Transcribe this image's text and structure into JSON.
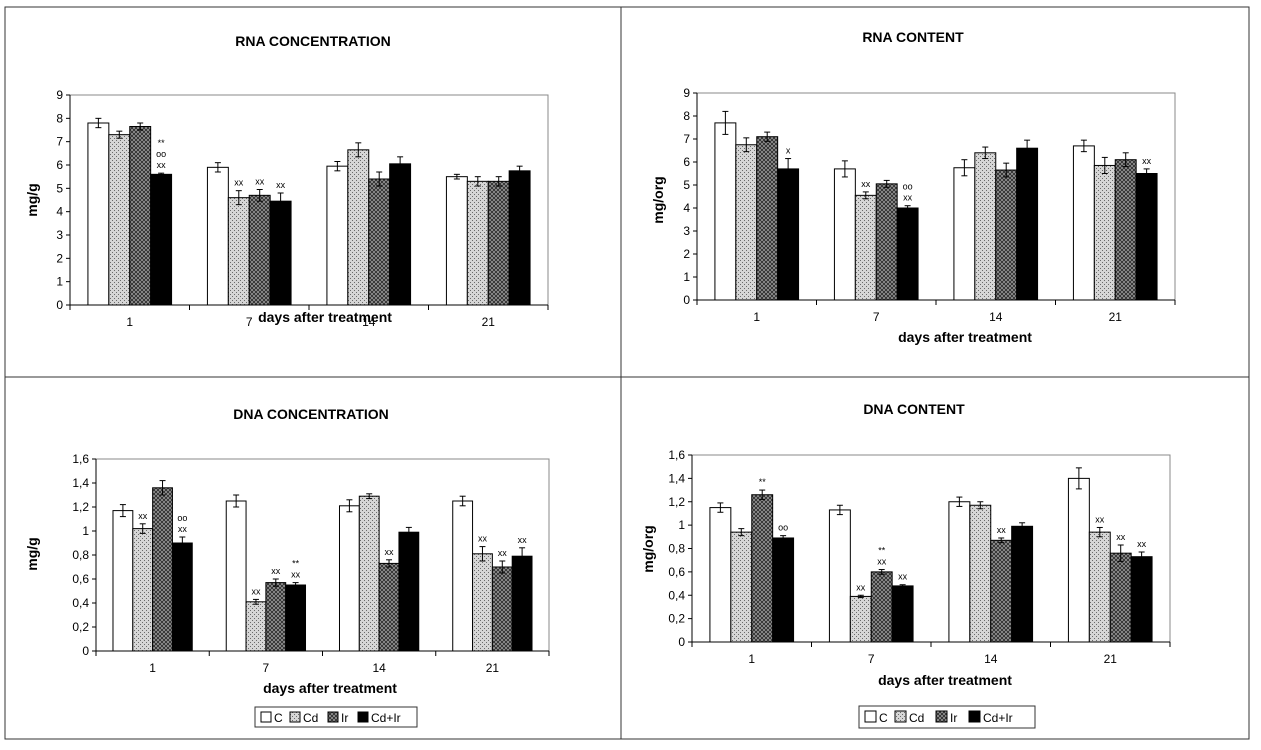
{
  "colors": {
    "C": "#ffffff",
    "Cd": "#bdbdbd",
    "Ir": "#8a8a8a",
    "Cd+Ir": "#000000"
  },
  "legend": [
    {
      "key": "C",
      "label": "C"
    },
    {
      "key": "Cd",
      "label": "Cd"
    },
    {
      "key": "Ir",
      "label": "Ir"
    },
    {
      "key": "Cd+Ir",
      "label": "Cd+Ir"
    }
  ],
  "chart_data": [
    {
      "type": "bar",
      "title": "RNA CONCENTRATION",
      "xlabel": "days after treatment",
      "ylabel": "mg/g",
      "ylim": [
        0,
        9
      ],
      "yticks": [
        "0",
        "1",
        "2",
        "3",
        "4",
        "5",
        "6",
        "7",
        "8",
        "9"
      ],
      "categories": [
        "1",
        "7",
        "14",
        "21"
      ],
      "series": [
        {
          "name": "C",
          "values": [
            7.8,
            5.9,
            5.95,
            5.5
          ],
          "errors": [
            0.2,
            0.2,
            0.2,
            0.1
          ]
        },
        {
          "name": "Cd",
          "values": [
            7.3,
            4.6,
            6.65,
            5.3
          ],
          "errors": [
            0.15,
            0.3,
            0.3,
            0.2
          ]
        },
        {
          "name": "Ir",
          "values": [
            7.65,
            4.7,
            5.4,
            5.3
          ],
          "errors": [
            0.15,
            0.25,
            0.3,
            0.2
          ]
        },
        {
          "name": "Cd+Ir",
          "values": [
            5.6,
            4.45,
            6.05,
            5.75
          ],
          "errors": [
            0.05,
            0.35,
            0.3,
            0.2
          ]
        }
      ],
      "annotations": [
        {
          "category": "1",
          "series": "Cd+Ir",
          "lines": [
            "**",
            "oo",
            "xx"
          ]
        },
        {
          "category": "7",
          "series": "Cd",
          "lines": [
            "xx"
          ]
        },
        {
          "category": "7",
          "series": "Ir",
          "lines": [
            "xx"
          ]
        },
        {
          "category": "7",
          "series": "Cd+Ir",
          "lines": [
            "xx"
          ]
        }
      ]
    },
    {
      "type": "bar",
      "title": "RNA CONTENT",
      "xlabel": "days after treatment",
      "ylabel": "mg/org",
      "ylim": [
        0,
        9
      ],
      "yticks": [
        "0",
        "1",
        "2",
        "3",
        "4",
        "5",
        "6",
        "7",
        "8",
        "9"
      ],
      "categories": [
        "1",
        "7",
        "14",
        "21"
      ],
      "series": [
        {
          "name": "C",
          "values": [
            7.7,
            5.7,
            5.75,
            6.7
          ],
          "errors": [
            0.5,
            0.35,
            0.35,
            0.25
          ]
        },
        {
          "name": "Cd",
          "values": [
            6.75,
            4.55,
            6.4,
            5.85
          ],
          "errors": [
            0.3,
            0.15,
            0.25,
            0.35
          ]
        },
        {
          "name": "Ir",
          "values": [
            7.1,
            5.05,
            5.65,
            6.1
          ],
          "errors": [
            0.2,
            0.15,
            0.3,
            0.3
          ]
        },
        {
          "name": "Cd+Ir",
          "values": [
            5.7,
            4.0,
            6.6,
            5.5
          ],
          "errors": [
            0.45,
            0.1,
            0.35,
            0.2
          ]
        }
      ],
      "annotations": [
        {
          "category": "1",
          "series": "Cd+Ir",
          "lines": [
            "x"
          ]
        },
        {
          "category": "7",
          "series": "Cd",
          "lines": [
            "xx"
          ]
        },
        {
          "category": "7",
          "series": "Cd+Ir",
          "lines": [
            "oo",
            "xx"
          ]
        },
        {
          "category": "21",
          "series": "Cd+Ir",
          "lines": [
            "xx"
          ]
        }
      ]
    },
    {
      "type": "bar",
      "title": "DNA CONCENTRATION",
      "xlabel": "days after treatment",
      "ylabel": "mg/g",
      "ylim": [
        0,
        1.6
      ],
      "yticks": [
        "0",
        "0,2",
        "0,4",
        "0,6",
        "0,8",
        "1",
        "1,2",
        "1,4",
        "1,6"
      ],
      "categories": [
        "1",
        "7",
        "14",
        "21"
      ],
      "series": [
        {
          "name": "C",
          "values": [
            1.17,
            1.25,
            1.21,
            1.25
          ],
          "errors": [
            0.05,
            0.05,
            0.05,
            0.04
          ]
        },
        {
          "name": "Cd",
          "values": [
            1.02,
            0.41,
            1.29,
            0.81
          ],
          "errors": [
            0.04,
            0.02,
            0.02,
            0.06
          ]
        },
        {
          "name": "Ir",
          "values": [
            1.36,
            0.57,
            0.73,
            0.7
          ],
          "errors": [
            0.06,
            0.03,
            0.03,
            0.05
          ]
        },
        {
          "name": "Cd+Ir",
          "values": [
            0.9,
            0.55,
            0.99,
            0.79
          ],
          "errors": [
            0.05,
            0.02,
            0.04,
            0.07
          ]
        }
      ],
      "annotations": [
        {
          "category": "1",
          "series": "Cd",
          "lines": [
            "xx"
          ]
        },
        {
          "category": "1",
          "series": "Cd+Ir",
          "lines": [
            "oo",
            "xx"
          ]
        },
        {
          "category": "7",
          "series": "Cd",
          "lines": [
            "xx"
          ]
        },
        {
          "category": "7",
          "series": "Ir",
          "lines": [
            "xx"
          ]
        },
        {
          "category": "7",
          "series": "Cd+Ir",
          "lines": [
            "**",
            "xx"
          ]
        },
        {
          "category": "14",
          "series": "Ir",
          "lines": [
            "xx"
          ]
        },
        {
          "category": "21",
          "series": "Cd",
          "lines": [
            "xx"
          ]
        },
        {
          "category": "21",
          "series": "Ir",
          "lines": [
            "xx"
          ]
        },
        {
          "category": "21",
          "series": "Cd+Ir",
          "lines": [
            "xx"
          ]
        }
      ]
    },
    {
      "type": "bar",
      "title": "DNA CONTENT",
      "xlabel": "days after treatment",
      "ylabel": "mg/org",
      "ylim": [
        0,
        1.6
      ],
      "yticks": [
        "0",
        "0,2",
        "0,4",
        "0,6",
        "0,8",
        "1",
        "1,2",
        "1,4",
        "1,6"
      ],
      "categories": [
        "1",
        "7",
        "14",
        "21"
      ],
      "series": [
        {
          "name": "C",
          "values": [
            1.15,
            1.13,
            1.2,
            1.4
          ],
          "errors": [
            0.04,
            0.04,
            0.04,
            0.09
          ]
        },
        {
          "name": "Cd",
          "values": [
            0.94,
            0.39,
            1.17,
            0.94
          ],
          "errors": [
            0.03,
            0.01,
            0.03,
            0.04
          ]
        },
        {
          "name": "Ir",
          "values": [
            1.26,
            0.6,
            0.87,
            0.76
          ],
          "errors": [
            0.04,
            0.02,
            0.02,
            0.07
          ]
        },
        {
          "name": "Cd+Ir",
          "values": [
            0.89,
            0.48,
            0.99,
            0.73
          ],
          "errors": [
            0.02,
            0.01,
            0.03,
            0.04
          ]
        }
      ],
      "annotations": [
        {
          "category": "1",
          "series": "Ir",
          "lines": [
            "**"
          ]
        },
        {
          "category": "1",
          "series": "Cd+Ir",
          "lines": [
            "oo"
          ]
        },
        {
          "category": "7",
          "series": "Cd",
          "lines": [
            "xx"
          ]
        },
        {
          "category": "7",
          "series": "Ir",
          "lines": [
            "**",
            "xx"
          ]
        },
        {
          "category": "7",
          "series": "Cd+Ir",
          "lines": [
            "xx"
          ]
        },
        {
          "category": "14",
          "series": "Ir",
          "lines": [
            "xx"
          ]
        },
        {
          "category": "21",
          "series": "Cd",
          "lines": [
            "xx"
          ]
        },
        {
          "category": "21",
          "series": "Ir",
          "lines": [
            "xx"
          ]
        },
        {
          "category": "21",
          "series": "Cd+Ir",
          "lines": [
            "xx"
          ]
        }
      ]
    }
  ]
}
